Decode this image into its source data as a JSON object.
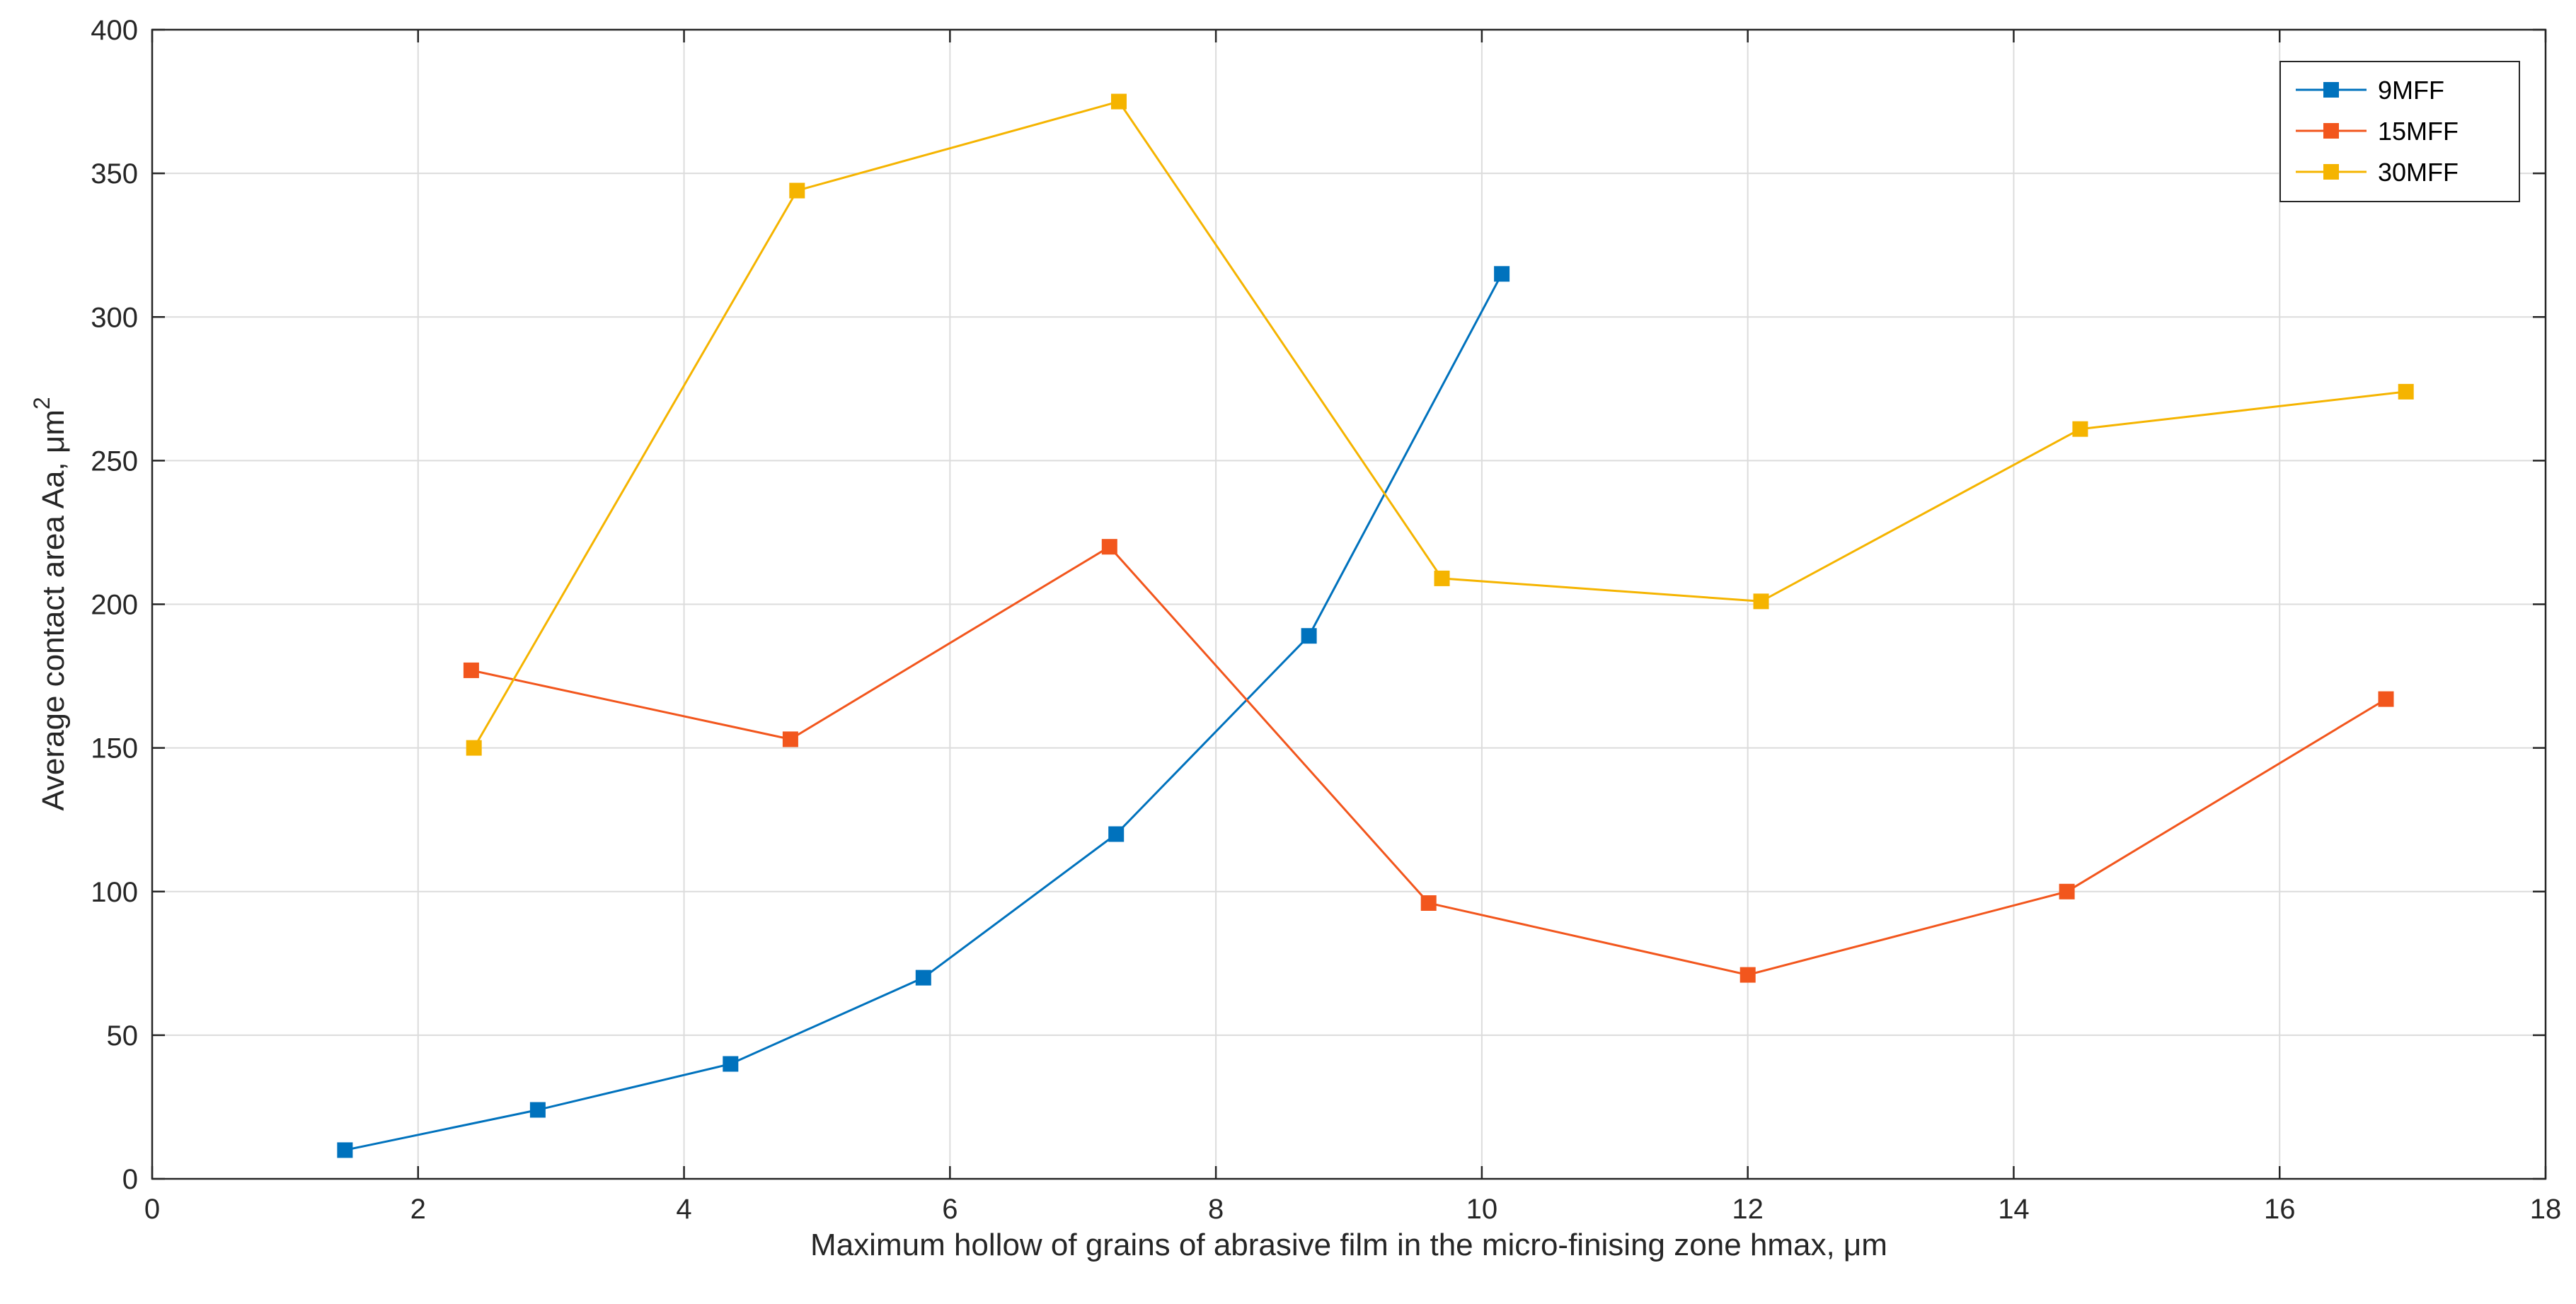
{
  "chart_data": {
    "type": "line",
    "title": "",
    "xlabel": "Maximum hollow of grains of abrasive film in the micro-finising zone hmax, μm",
    "ylabel_main": "Average contact area Aa, μm",
    "ylabel_sup": "2",
    "xlim": [
      0,
      18
    ],
    "ylim": [
      0,
      400
    ],
    "xticks": [
      0,
      2,
      4,
      6,
      8,
      10,
      12,
      14,
      16,
      18
    ],
    "yticks": [
      0,
      50,
      100,
      150,
      200,
      250,
      300,
      350,
      400
    ],
    "grid": true,
    "legend_position": "top-right",
    "series": [
      {
        "name": "9MFF",
        "color": "#0072BD",
        "x": [
          1.45,
          2.9,
          4.35,
          5.8,
          7.25,
          8.7,
          10.15
        ],
        "y": [
          10,
          24,
          40,
          70,
          120,
          189,
          315
        ]
      },
      {
        "name": "15MFF",
        "color": "#F2561D",
        "x": [
          2.4,
          4.8,
          7.2,
          9.6,
          12.0,
          14.4,
          16.8
        ],
        "y": [
          177,
          153,
          220,
          96,
          71,
          100,
          167
        ]
      },
      {
        "name": "30MFF",
        "color": "#F5B400",
        "x": [
          2.42,
          4.85,
          7.27,
          9.7,
          12.1,
          14.5,
          16.95
        ],
        "y": [
          150,
          344,
          375,
          209,
          201,
          261,
          274
        ]
      }
    ]
  }
}
